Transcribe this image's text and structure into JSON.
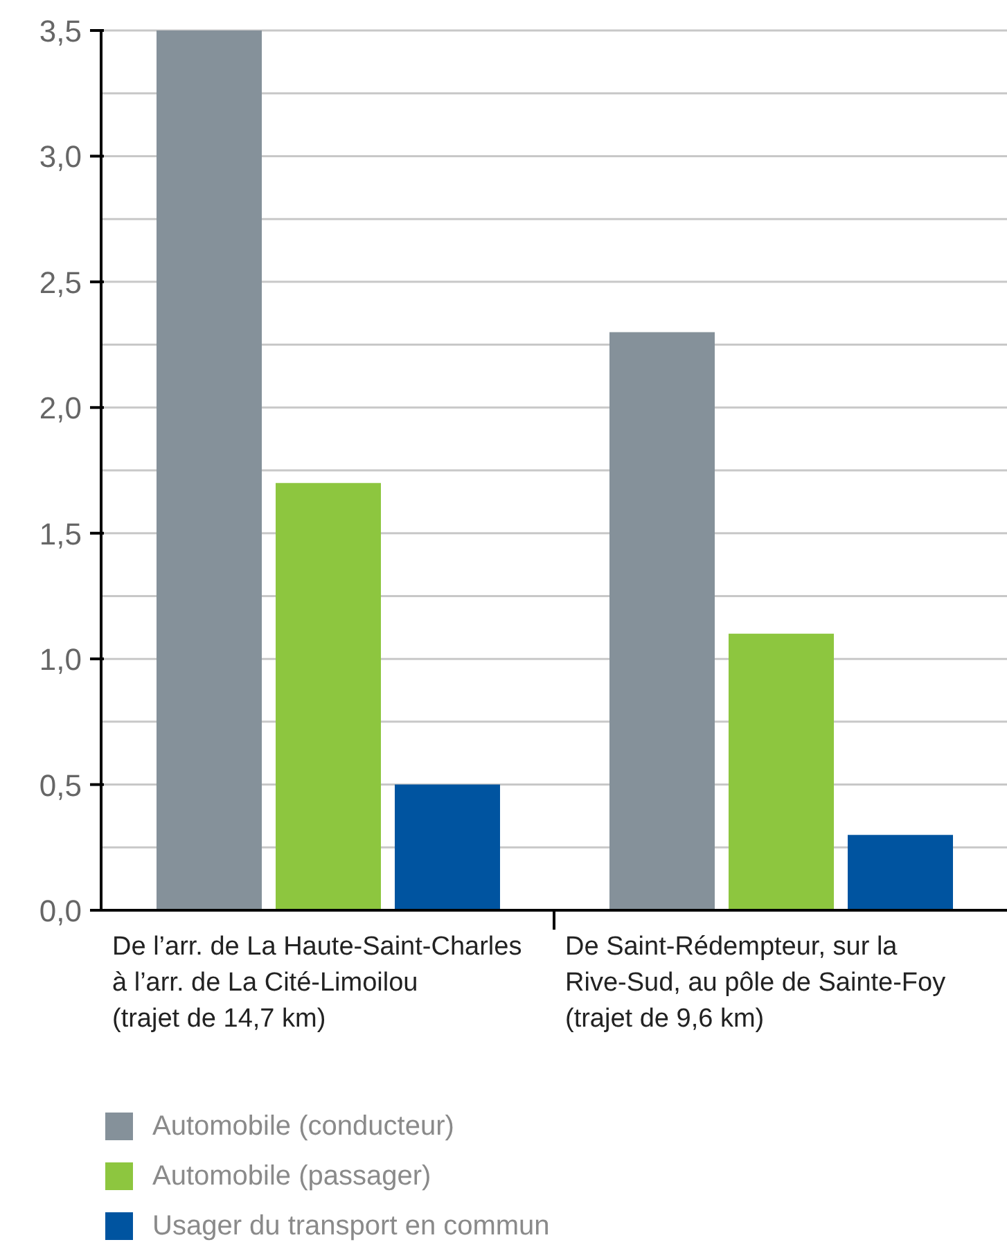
{
  "chart_data": {
    "type": "bar",
    "categories": [
      "De l’arr. de La Haute-Saint-Charles\nà l’arr. de La Cité-Limoilou\n(trajet de 14,7 km)",
      "De Saint-Rédempteur, sur la\nRive-Sud, au pôle de Sainte-Foy\n(trajet de 9,6 km)"
    ],
    "series": [
      {
        "name": "Automobile (conducteur)",
        "color": "#85919a",
        "values": [
          3.5,
          2.3
        ]
      },
      {
        "name": "Automobile (passager)",
        "color": "#8dc63f",
        "values": [
          1.7,
          1.1
        ]
      },
      {
        "name": "Usager du transport en commun",
        "color": "#0054a0",
        "values": [
          0.5,
          0.3
        ]
      }
    ],
    "ylim": [
      0,
      3.5
    ],
    "yticks": [
      {
        "value": 0,
        "label": "0,0"
      },
      {
        "value": 0.25,
        "label": null
      },
      {
        "value": 0.5,
        "label": "0,5"
      },
      {
        "value": 0.75,
        "label": null
      },
      {
        "value": 1,
        "label": "1,0"
      },
      {
        "value": 1.25,
        "label": null
      },
      {
        "value": 1.5,
        "label": "1,5"
      },
      {
        "value": 1.75,
        "label": null
      },
      {
        "value": 2,
        "label": "2,0"
      },
      {
        "value": 2.25,
        "label": null
      },
      {
        "value": 2.5,
        "label": "2,5"
      },
      {
        "value": 2.75,
        "label": null
      },
      {
        "value": 3,
        "label": "3,0"
      },
      {
        "value": 3.25,
        "label": null
      },
      {
        "value": 3.5,
        "label": "3,5"
      }
    ],
    "grid": "y",
    "legend": "bottom left"
  }
}
